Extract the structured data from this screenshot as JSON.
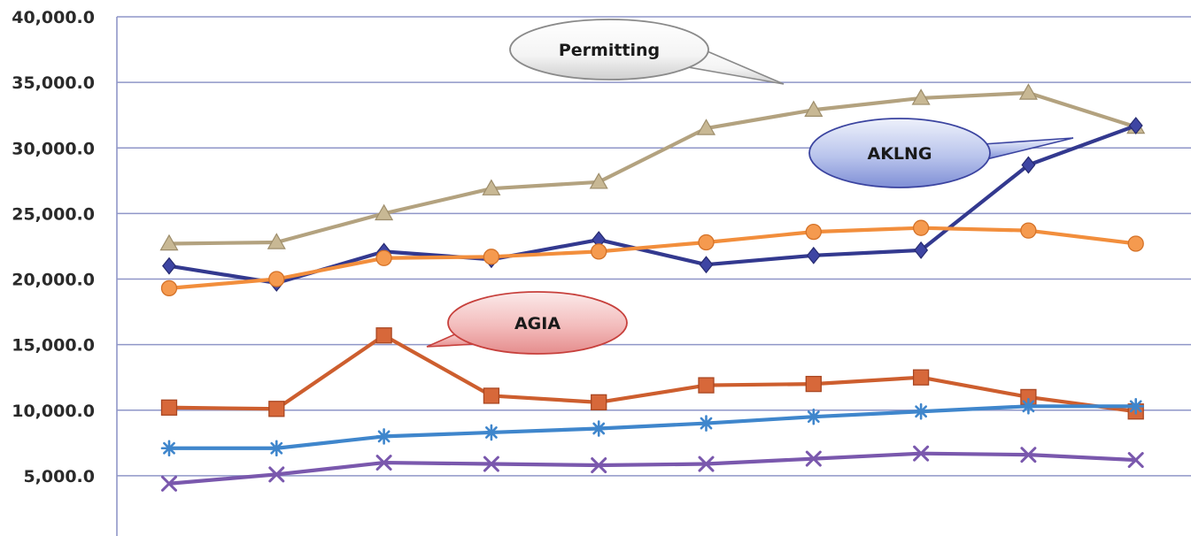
{
  "chart_data": {
    "type": "line",
    "title": "",
    "xlabel": "",
    "ylabel": "",
    "ylim": [
      0,
      40000
    ],
    "yticks": [
      "5,000.0",
      "10,000.0",
      "15,000.0",
      "20,000.0",
      "25,000.0",
      "30,000.0",
      "35,000.0",
      "40,000.0"
    ],
    "ytick_values": [
      5000,
      10000,
      15000,
      20000,
      25000,
      30000,
      35000,
      40000
    ],
    "grid": true,
    "x": [
      1,
      2,
      3,
      4,
      5,
      6,
      7,
      8,
      9,
      10
    ],
    "series": [
      {
        "color": "#b3a27f",
        "marker": "triangle",
        "values": [
          22700,
          22800,
          25000,
          26900,
          27400,
          31500,
          32900,
          33800,
          34200,
          31600
        ]
      },
      {
        "color": "#33398f",
        "marker": "diamond",
        "values": [
          21000,
          19700,
          22100,
          21500,
          23000,
          21100,
          21800,
          22200,
          28700,
          31700
        ]
      },
      {
        "color": "#f28e3c",
        "marker": "circle",
        "values": [
          19300,
          20000,
          21600,
          21700,
          22100,
          22800,
          23600,
          23900,
          23700,
          22700
        ]
      },
      {
        "color": "#cd5e2e",
        "marker": "square",
        "values": [
          10200,
          10100,
          15700,
          11100,
          10600,
          11900,
          12000,
          12500,
          11000,
          9900
        ]
      },
      {
        "color": "#3f86cc",
        "marker": "asterisk",
        "values": [
          7100,
          7100,
          8000,
          8300,
          8600,
          9000,
          9500,
          9900,
          10300,
          10300
        ]
      },
      {
        "color": "#7a58ad",
        "marker": "x",
        "values": [
          4400,
          5100,
          6000,
          5900,
          5800,
          5900,
          6300,
          6700,
          6600,
          6200
        ]
      }
    ],
    "annotations": [
      {
        "text": "Permitting",
        "style": "white"
      },
      {
        "text": "AKLNG",
        "style": "blue"
      },
      {
        "text": "AGIA",
        "style": "pink"
      }
    ]
  }
}
